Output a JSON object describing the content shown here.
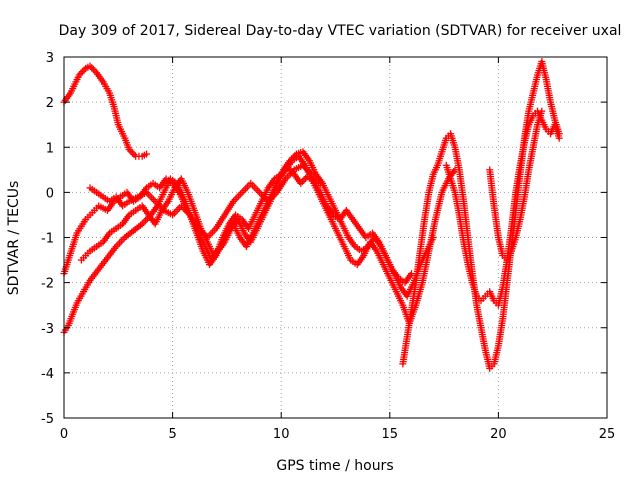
{
  "chart_data": {
    "type": "scatter",
    "title": "Day 309 of 2017, Sidereal Day-to-day VTEC variation (SDTVAR) for receiver uxal",
    "xlabel": "GPS time / hours",
    "ylabel": "SDTVAR / TECUs",
    "xlim": [
      0,
      25
    ],
    "ylim": [
      -5,
      3
    ],
    "xticks": [
      "0",
      "5",
      "10",
      "15",
      "20",
      "25"
    ],
    "yticks": [
      "-5",
      "-4",
      "-3",
      "-2",
      "-1",
      "0",
      "1",
      "2",
      "3"
    ],
    "grid": true,
    "marker": "+",
    "color": "#ff0000",
    "series": [
      {
        "x": [
          0.0,
          0.3,
          0.5,
          0.7,
          1.0,
          1.2,
          1.5,
          1.8,
          2.1,
          2.3,
          2.5,
          2.8,
          3.0,
          3.3,
          3.6,
          3.8
        ],
        "y": [
          2.0,
          2.2,
          2.4,
          2.6,
          2.75,
          2.8,
          2.65,
          2.45,
          2.2,
          1.9,
          1.5,
          1.2,
          0.95,
          0.8,
          0.8,
          0.85
        ]
      },
      {
        "x": [
          0.0,
          0.2,
          0.4,
          0.6,
          0.9,
          1.2,
          1.6,
          2.0,
          2.4,
          2.8,
          3.2,
          3.6,
          4.0,
          4.3,
          4.6,
          4.9,
          5.2,
          5.5,
          5.8,
          6.1,
          6.4,
          6.7,
          7.0,
          7.3,
          7.6,
          7.9,
          8.2,
          8.5,
          8.8,
          9.1,
          9.4,
          9.7,
          10.0,
          10.3,
          10.6,
          10.9,
          11.2,
          11.5,
          11.8,
          12.1,
          12.4,
          12.7,
          13.0,
          13.3,
          13.6,
          13.9,
          14.2,
          14.5,
          14.8,
          15.1,
          15.4,
          15.7,
          16.0
        ],
        "y": [
          -3.1,
          -2.95,
          -2.7,
          -2.45,
          -2.2,
          -1.95,
          -1.7,
          -1.45,
          -1.2,
          -1.0,
          -0.85,
          -0.7,
          -0.5,
          -0.3,
          0.0,
          0.3,
          0.2,
          -0.1,
          -0.5,
          -0.9,
          -1.3,
          -1.6,
          -1.4,
          -1.0,
          -0.7,
          -0.5,
          -0.6,
          -0.8,
          -0.5,
          -0.2,
          0.1,
          0.3,
          0.4,
          0.55,
          0.4,
          0.2,
          0.35,
          0.25,
          0.0,
          -0.3,
          -0.5,
          -0.6,
          -0.4,
          -0.6,
          -0.8,
          -1.0,
          -0.9,
          -1.1,
          -1.4,
          -1.7,
          -1.9,
          -2.0,
          -1.8
        ]
      },
      {
        "x": [
          0.0,
          0.2,
          0.4,
          0.6,
          0.8,
          1.0,
          1.2,
          1.4,
          1.6,
          1.8,
          2.0,
          2.3,
          2.6,
          2.9,
          3.2,
          3.5,
          3.8,
          4.1,
          4.4,
          4.7,
          5.0,
          5.3,
          5.6,
          5.9,
          6.2,
          6.5,
          6.8,
          7.1,
          7.4,
          7.7,
          8.0,
          8.3,
          8.6,
          8.9,
          9.2,
          9.5,
          9.8,
          10.1,
          10.4,
          10.7,
          11.0,
          11.3,
          11.6,
          11.9,
          12.2,
          12.5,
          12.8,
          13.1,
          13.4,
          13.7,
          14.0,
          14.3,
          14.6,
          14.9,
          15.2,
          15.5,
          15.8,
          16.1,
          16.4,
          16.7,
          17.0
        ],
        "y": [
          -1.8,
          -1.5,
          -1.2,
          -0.9,
          -0.75,
          -0.6,
          -0.5,
          -0.4,
          -0.3,
          -0.35,
          -0.4,
          -0.2,
          -0.1,
          0.0,
          -0.2,
          -0.1,
          0.1,
          0.2,
          0.1,
          0.3,
          0.2,
          0.0,
          -0.3,
          -0.6,
          -0.9,
          -1.2,
          -1.5,
          -1.3,
          -1.1,
          -0.8,
          -0.6,
          -0.9,
          -1.1,
          -0.8,
          -0.5,
          -0.2,
          0.2,
          0.5,
          0.7,
          0.85,
          0.9,
          0.7,
          0.4,
          0.2,
          -0.1,
          -0.4,
          -0.7,
          -1.0,
          -1.2,
          -1.3,
          -1.2,
          -1.0,
          -1.2,
          -1.5,
          -1.8,
          -2.1,
          -2.3,
          -2.0,
          -1.6,
          -1.3,
          -1.0
        ]
      },
      {
        "x": [
          0.8,
          1.0,
          1.2,
          1.5,
          1.8,
          2.1,
          2.4,
          2.7,
          3.0,
          3.3,
          3.6,
          3.9,
          4.2,
          4.5,
          4.8,
          5.1,
          5.4,
          5.7,
          6.0,
          6.3,
          6.6,
          6.9,
          7.2,
          7.5,
          7.8,
          8.1,
          8.4,
          8.7,
          9.0,
          9.3,
          9.6,
          9.9,
          10.2,
          10.5,
          10.8,
          11.1,
          11.4,
          11.7,
          12.0,
          12.3,
          12.6,
          12.9,
          13.2,
          13.5,
          13.8,
          14.1,
          14.4,
          14.7,
          15.0,
          15.3,
          15.6,
          15.9,
          16.2,
          16.5,
          16.8,
          17.1,
          17.4,
          17.7,
          18.0
        ],
        "y": [
          -1.5,
          -1.4,
          -1.3,
          -1.2,
          -1.1,
          -0.9,
          -0.8,
          -0.7,
          -0.5,
          -0.4,
          -0.3,
          -0.5,
          -0.7,
          -0.4,
          -0.2,
          0.1,
          0.3,
          0.0,
          -0.4,
          -0.8,
          -1.1,
          -1.4,
          -1.2,
          -0.9,
          -0.7,
          -1.0,
          -1.2,
          -0.9,
          -0.6,
          -0.3,
          0.0,
          0.3,
          0.5,
          0.7,
          0.8,
          0.6,
          0.3,
          0.0,
          -0.3,
          -0.6,
          -0.9,
          -1.2,
          -1.5,
          -1.6,
          -1.4,
          -1.1,
          -1.3,
          -1.6,
          -1.9,
          -2.2,
          -2.5,
          -2.9,
          -2.5,
          -2.0,
          -1.3,
          -0.6,
          0.0,
          0.3,
          0.5
        ]
      },
      {
        "x": [
          1.2,
          1.5,
          1.8,
          2.1,
          2.4,
          2.7,
          3.0,
          3.4,
          3.8,
          4.2,
          4.6,
          5.0,
          5.4,
          5.8,
          6.2,
          6.6,
          7.0,
          7.4,
          7.8,
          8.2,
          8.6,
          9.0,
          9.4,
          9.8,
          10.2,
          10.6,
          11.0,
          11.4,
          11.8
        ],
        "y": [
          0.1,
          0.0,
          -0.1,
          -0.2,
          -0.1,
          -0.3,
          -0.2,
          -0.1,
          0.0,
          -0.2,
          -0.4,
          -0.5,
          -0.3,
          -0.5,
          -0.8,
          -1.0,
          -0.8,
          -0.5,
          -0.2,
          0.0,
          0.2,
          0.0,
          -0.2,
          0.0,
          0.3,
          0.5,
          0.6,
          0.4,
          0.2
        ]
      },
      {
        "x": [
          15.6,
          15.8,
          16.0,
          16.2,
          16.4,
          16.6,
          16.8,
          17.0,
          17.2,
          17.4,
          17.6,
          17.8,
          18.0,
          18.2,
          18.4,
          18.6,
          18.8,
          19.0,
          19.2,
          19.4,
          19.6,
          19.8,
          20.0,
          20.2,
          20.4,
          20.6,
          20.8,
          21.0,
          21.2,
          21.4,
          21.6,
          21.8,
          22.0,
          22.2,
          22.4,
          22.6,
          22.8
        ],
        "y": [
          -3.8,
          -3.2,
          -2.6,
          -2.0,
          -1.3,
          -0.6,
          0.0,
          0.4,
          0.6,
          0.9,
          1.2,
          1.3,
          1.0,
          0.5,
          -0.2,
          -1.0,
          -1.8,
          -2.5,
          -3.0,
          -3.5,
          -3.9,
          -3.8,
          -3.4,
          -2.8,
          -2.0,
          -1.2,
          -0.4,
          0.4,
          1.2,
          1.8,
          2.2,
          2.6,
          2.9,
          2.5,
          2.0,
          1.6,
          1.3
        ]
      },
      {
        "x": [
          17.6,
          17.8,
          18.0,
          18.2,
          18.4,
          18.6,
          18.8,
          19.0,
          19.2,
          19.4,
          19.6,
          19.8,
          20.0,
          20.2,
          20.4,
          20.6,
          20.8,
          21.0,
          21.2,
          21.4,
          21.6,
          21.8,
          22.0,
          22.2,
          22.4,
          22.6,
          22.8
        ],
        "y": [
          0.6,
          0.3,
          0.0,
          -0.5,
          -1.1,
          -1.6,
          -2.0,
          -2.3,
          -2.4,
          -2.3,
          -2.2,
          -2.4,
          -2.5,
          -2.1,
          -1.5,
          -0.8,
          0.0,
          0.6,
          1.1,
          1.5,
          1.7,
          1.8,
          1.6,
          1.4,
          1.3,
          1.5,
          1.2
        ]
      },
      {
        "x": [
          19.6,
          19.8,
          20.0,
          20.2,
          20.4,
          20.6,
          20.8,
          21.0,
          21.2,
          21.4,
          21.6,
          21.8,
          22.0
        ],
        "y": [
          0.5,
          -0.3,
          -1.0,
          -1.4,
          -1.5,
          -1.3,
          -1.0,
          -0.6,
          -0.1,
          0.5,
          1.0,
          1.5,
          1.8
        ]
      }
    ]
  }
}
